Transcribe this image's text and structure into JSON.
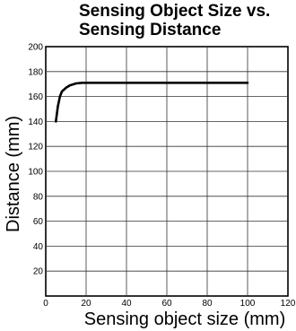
{
  "chart_data": {
    "type": "line",
    "title_lines": [
      "Sensing Object Size vs.",
      "Sensing Distance"
    ],
    "xlabel": "Sensing object size (mm)",
    "ylabel": "Distance (mm)",
    "xlim": [
      0,
      120
    ],
    "ylim": [
      0,
      200
    ],
    "x_ticks": [
      0,
      20,
      40,
      60,
      80,
      100,
      120
    ],
    "y_ticks": [
      20,
      40,
      60,
      80,
      100,
      120,
      140,
      160,
      180,
      200
    ],
    "grid": true,
    "series": [
      {
        "color": "#000000",
        "x": [
          5,
          6,
          7,
          8,
          10,
          12,
          15,
          18,
          20,
          30,
          50,
          80,
          100
        ],
        "y": [
          140,
          152,
          160,
          164,
          167,
          169,
          170.5,
          171,
          171,
          171,
          171,
          171,
          171
        ]
      }
    ]
  }
}
